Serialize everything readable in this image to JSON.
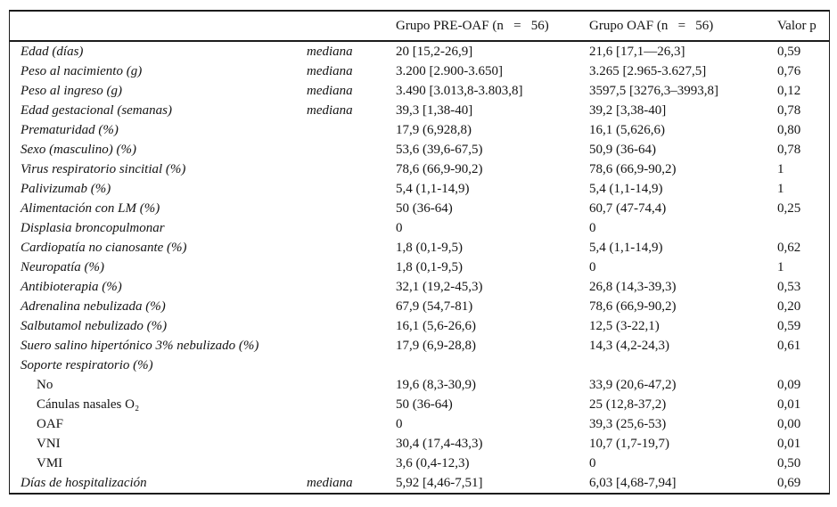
{
  "table": {
    "header": {
      "col_pre": "Grupo PRE-OAF (n   =   56)",
      "col_oaf": "Grupo OAF (n   =   56)",
      "col_p": "Valor p"
    },
    "rows": [
      {
        "label": "Edad (días)",
        "italic": true,
        "indent": false,
        "stat": "mediana",
        "pre": "20 [15,2-26,9]",
        "oaf": "21,6 [17,1—26,3]",
        "p": "0,59"
      },
      {
        "label": "Peso al nacimiento (g)",
        "italic": true,
        "indent": false,
        "stat": "mediana",
        "pre": "3.200 [2.900-3.650]",
        "oaf": "3.265 [2.965-3.627,5]",
        "p": "0,76"
      },
      {
        "label": "Peso al ingreso (g)",
        "italic": true,
        "indent": false,
        "stat": "mediana",
        "pre": "3.490 [3.013,8-3.803,8]",
        "oaf": "3597,5 [3276,3–3993,8]",
        "p": "0,12"
      },
      {
        "label": "Edad gestacional (semanas)",
        "italic": true,
        "indent": false,
        "stat": "mediana",
        "pre": "39,3 [1,38-40]",
        "oaf": "39,2 [3,38-40]",
        "p": "0,78"
      },
      {
        "label": "Prematuridad (%)",
        "italic": true,
        "indent": false,
        "stat": "",
        "pre": "17,9 (6,928,8)",
        "oaf": "16,1 (5,626,6)",
        "p": "0,80"
      },
      {
        "label": "Sexo (masculino) (%)",
        "italic": true,
        "indent": false,
        "stat": "",
        "pre": "53,6 (39,6-67,5)",
        "oaf": "50,9 (36-64)",
        "p": "0,78"
      },
      {
        "label": "Virus respiratorio sincitial (%)",
        "italic": true,
        "indent": false,
        "stat": "",
        "pre": "78,6 (66,9-90,2)",
        "oaf": "78,6 (66,9-90,2)",
        "p": "1"
      },
      {
        "label": "Palivizumab (%)",
        "italic": true,
        "indent": false,
        "stat": "",
        "pre": "5,4 (1,1-14,9)",
        "oaf": "5,4 (1,1-14,9)",
        "p": "1"
      },
      {
        "label": "Alimentación con LM (%)",
        "italic": true,
        "indent": false,
        "stat": "",
        "pre": "50 (36-64)",
        "oaf": "60,7 (47-74,4)",
        "p": "0,25"
      },
      {
        "label": "Displasia broncopulmonar",
        "italic": true,
        "indent": false,
        "stat": "",
        "pre": "0",
        "oaf": "0",
        "p": ""
      },
      {
        "label": "Cardiopatía no cianosante (%)",
        "italic": true,
        "indent": false,
        "stat": "",
        "pre": "1,8 (0,1-9,5)",
        "oaf": "5,4 (1,1-14,9)",
        "p": "0,62"
      },
      {
        "label": "Neuropatía (%)",
        "italic": true,
        "indent": false,
        "stat": "",
        "pre": "1,8 (0,1-9,5)",
        "oaf": "0",
        "p": "1"
      },
      {
        "label": "Antibioterapia (%)",
        "italic": true,
        "indent": false,
        "stat": "",
        "pre": "32,1 (19,2-45,3)",
        "oaf": "26,8 (14,3-39,3)",
        "p": "0,53"
      },
      {
        "label": "Adrenalina nebulizada (%)",
        "italic": true,
        "indent": false,
        "stat": "",
        "pre": "67,9 (54,7-81)",
        "oaf": "78,6 (66,9-90,2)",
        "p": "0,20"
      },
      {
        "label": "Salbutamol nebulizado (%)",
        "italic": true,
        "indent": false,
        "stat": "",
        "pre": "16,1 (5,6-26,6)",
        "oaf": "12,5 (3-22,1)",
        "p": "0,59"
      },
      {
        "label": "Suero salino hipertónico 3% nebulizado (%)",
        "italic": true,
        "indent": false,
        "stat": "",
        "pre": "17,9 (6,9-28,8)",
        "oaf": "14,3 (4,2-24,3)",
        "p": "0,61"
      },
      {
        "label": "Soporte respiratorio (%)",
        "italic": true,
        "indent": false,
        "stat": "",
        "pre": "",
        "oaf": "",
        "p": ""
      },
      {
        "label": "No",
        "italic": false,
        "indent": true,
        "stat": "",
        "pre": "19,6 (8,3-30,9)",
        "oaf": "33,9 (20,6-47,2)",
        "p": "0,09"
      },
      {
        "label": "Cánulas nasales O₂",
        "italic": false,
        "indent": true,
        "stat": "",
        "pre": "50 (36-64)",
        "oaf": "25 (12,8-37,2)",
        "p": "0,01"
      },
      {
        "label": "OAF",
        "italic": false,
        "indent": true,
        "stat": "",
        "pre": "0",
        "oaf": "39,3 (25,6-53)",
        "p": "0,00"
      },
      {
        "label": "VNI",
        "italic": false,
        "indent": true,
        "stat": "",
        "pre": "30,4 (17,4-43,3)",
        "oaf": "10,7 (1,7-19,7)",
        "p": "0,01"
      },
      {
        "label": "VMI",
        "italic": false,
        "indent": true,
        "stat": "",
        "pre": "3,6 (0,4-12,3)",
        "oaf": "0",
        "p": "0,50"
      },
      {
        "label": "Días de hospitalización",
        "italic": true,
        "indent": false,
        "stat": "mediana",
        "pre": "5,92 [4,46-7,51]",
        "oaf": "6,03 [4,68-7,94]",
        "p": "0,69"
      }
    ]
  }
}
